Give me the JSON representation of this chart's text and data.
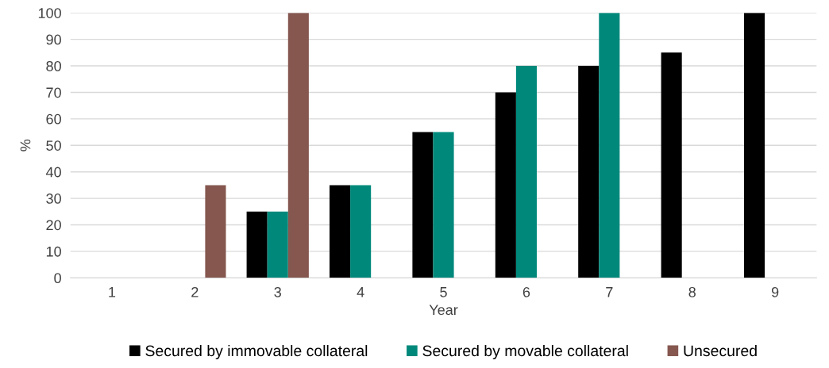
{
  "chart_data": {
    "type": "bar",
    "xlabel": "Year",
    "ylabel": "%",
    "categories": [
      "1",
      "2",
      "3",
      "4",
      "5",
      "6",
      "7",
      "8",
      "9"
    ],
    "series": [
      {
        "name": "Secured by immovable collateral",
        "color": "#000000",
        "values": [
          null,
          null,
          25,
          35,
          55,
          70,
          80,
          85,
          100
        ]
      },
      {
        "name": "Secured by movable collateral",
        "color": "#00897b",
        "values": [
          null,
          null,
          25,
          35,
          55,
          80,
          100,
          null,
          null
        ]
      },
      {
        "name": "Unsecured",
        "color": "#85574f",
        "values": [
          null,
          35,
          100,
          null,
          null,
          null,
          null,
          null,
          null
        ]
      }
    ],
    "ylim": [
      0,
      100
    ],
    "yticks": [
      0,
      10,
      20,
      30,
      40,
      50,
      60,
      70,
      80,
      90,
      100
    ],
    "grid": "y",
    "legend": "bottom"
  }
}
